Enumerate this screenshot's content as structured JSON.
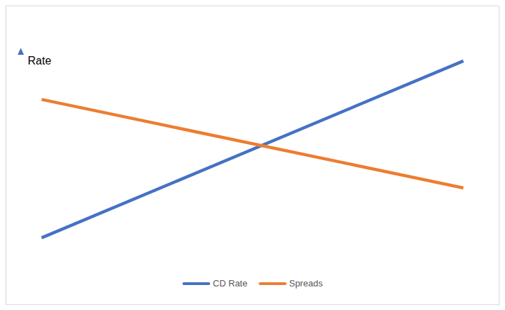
{
  "chart_data": {
    "type": "line",
    "ylabel": "Rate",
    "categories": [
      null,
      null
    ],
    "series": [
      {
        "name": "CD Rate",
        "color": "#4472c4",
        "values": [
          1.9,
          9.7
        ]
      },
      {
        "name": "Spreads",
        "color": "#ed7d31",
        "values": [
          8.0,
          4.1
        ]
      }
    ],
    "ylim": [
      0,
      10
    ],
    "grid": false,
    "legend": "bottom",
    "tick_labels": false
  }
}
